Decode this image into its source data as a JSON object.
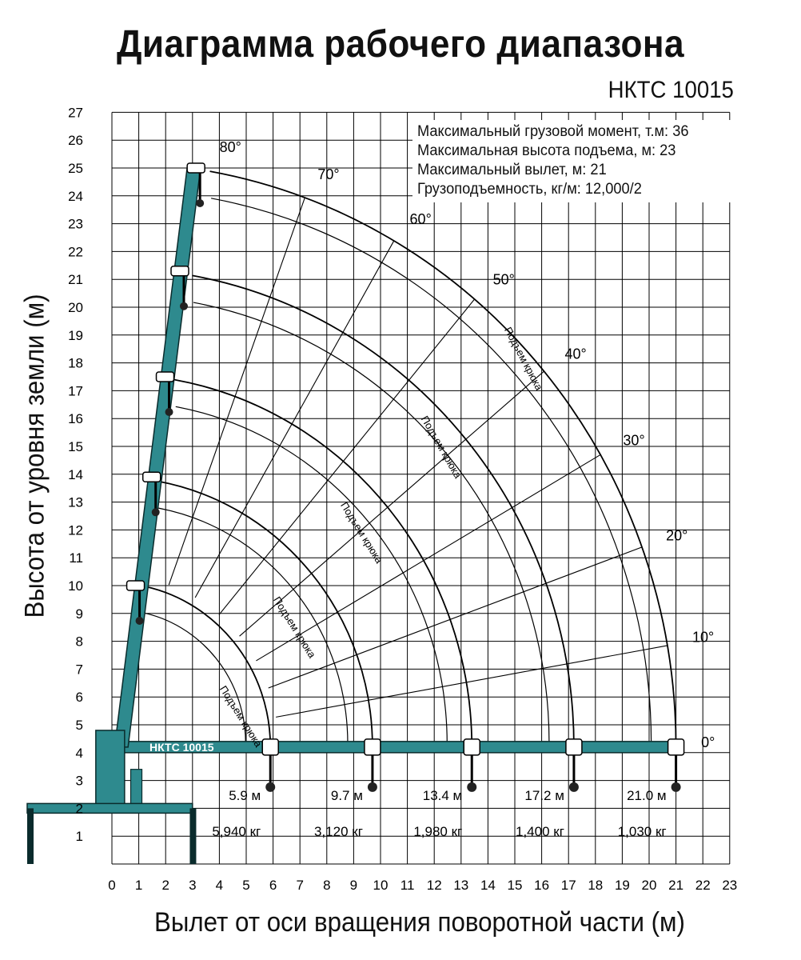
{
  "title": "Диаграмма рабочего диапазона",
  "model": "НКТС 10015",
  "truck_label": "НКТС 10015",
  "axes": {
    "x_label": "Вылет от оси вращения поворотной части (м)",
    "y_label": "Высота от уровня земли (м)",
    "x_ticks": [
      "0",
      "1",
      "2",
      "3",
      "4",
      "5",
      "6",
      "7",
      "8",
      "9",
      "10",
      "11",
      "12",
      "13",
      "14",
      "15",
      "16",
      "17",
      "18",
      "19",
      "20",
      "21",
      "22",
      "23"
    ],
    "y_ticks": [
      "1",
      "2",
      "3",
      "4",
      "5",
      "6",
      "7",
      "8",
      "9",
      "10",
      "11",
      "12",
      "13",
      "14",
      "15",
      "16",
      "17",
      "18",
      "19",
      "20",
      "21",
      "22",
      "23",
      "24",
      "25",
      "26",
      "27"
    ]
  },
  "specs": [
    "Максимальный грузовой момент, т.м: 36",
    "Максимальная высота подъема, м: 23",
    "Максимальный вылет, м: 21",
    "Грузоподъемность, кг/м: 12,000/2"
  ],
  "angle_labels": [
    "80°",
    "70°",
    "60°",
    "50°",
    "40°",
    "30°",
    "20°",
    "10°",
    "0°"
  ],
  "hook_label": "Подъем крюка",
  "capacities": [
    {
      "reach": "5.9 м",
      "load": "5,940 кг"
    },
    {
      "reach": "9.7 м",
      "load": "3,120 кг"
    },
    {
      "reach": "13.4 м",
      "load": "1,980 кг"
    },
    {
      "reach": "17.2 м",
      "load": "1,400 кг"
    },
    {
      "reach": "21.0 м",
      "load": "1,030 кг"
    }
  ],
  "colors": {
    "boom": "#2e8a8e",
    "grid": "#000000",
    "text": "#111111"
  }
}
